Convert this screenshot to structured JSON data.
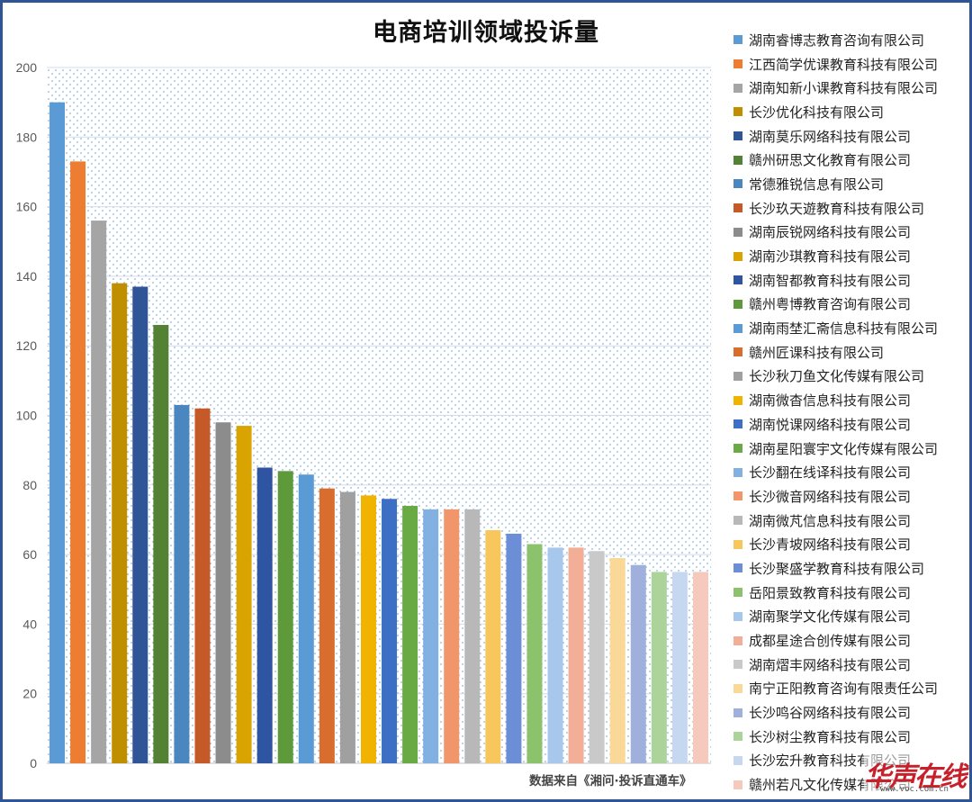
{
  "chart_data": {
    "type": "bar",
    "title": "电商培训领域投诉量",
    "ylim": [
      0,
      200
    ],
    "yticks": [
      0,
      20,
      40,
      60,
      80,
      100,
      120,
      140,
      160,
      180,
      200
    ],
    "grid": true,
    "legend_position": "right",
    "source_note": "数据来自《湘问·投诉直通车》",
    "series": [
      {
        "name": "湖南睿博志教育咨询有限公司",
        "value": 190,
        "color": "#5b9bd5"
      },
      {
        "name": "江西简学优课教育科技有限公司",
        "value": 173,
        "color": "#ed7d31"
      },
      {
        "name": "湖南知新小课教育科技有限公司",
        "value": 156,
        "color": "#a5a5a5"
      },
      {
        "name": "长沙优化科技有限公司",
        "value": 138,
        "color": "#bf8f00"
      },
      {
        "name": "湖南莫乐网络科技有限公司",
        "value": 137,
        "color": "#2f5597"
      },
      {
        "name": "赣州研思文化教育有限公司",
        "value": 126,
        "color": "#548235"
      },
      {
        "name": "常德雅锐信息有限公司",
        "value": 103,
        "color": "#4a86c0"
      },
      {
        "name": "长沙玖天遊教育科技有限公司",
        "value": 102,
        "color": "#c55a28"
      },
      {
        "name": "湖南辰锐网络科技有限公司",
        "value": 98,
        "color": "#8c8c8c"
      },
      {
        "name": "湖南沙琪教育科技有限公司",
        "value": 97,
        "color": "#d9a400"
      },
      {
        "name": "湖南智都教育科技有限公司",
        "value": 85,
        "color": "#2e54a2"
      },
      {
        "name": "赣州粤博教育咨询有限公司",
        "value": 84,
        "color": "#5e9a3a"
      },
      {
        "name": "湖南雨埜汇斋信息科技有限公司",
        "value": 83,
        "color": "#5b9bd5"
      },
      {
        "name": "赣州匠课科技有限公司",
        "value": 79,
        "color": "#d96d2d"
      },
      {
        "name": "长沙秋刀鱼文化传媒有限公司",
        "value": 78,
        "color": "#a0a0a0"
      },
      {
        "name": "湖南微杳信息科技有限公司",
        "value": 77,
        "color": "#f0b400"
      },
      {
        "name": "湖南悦课网络科技有限公司",
        "value": 76,
        "color": "#3d6fc4"
      },
      {
        "name": "湖南星阳寰宇文化传媒有限公司",
        "value": 74,
        "color": "#6aaa45"
      },
      {
        "name": "长沙翻在线译科技有限公司",
        "value": 73,
        "color": "#82b0e0"
      },
      {
        "name": "长沙微音网络科技有限公司",
        "value": 73,
        "color": "#f0966a"
      },
      {
        "name": "湖南微芃信息科技有限公司",
        "value": 73,
        "color": "#b8b8b8"
      },
      {
        "name": "长沙青坡网络科技有限公司",
        "value": 67,
        "color": "#f7c65c"
      },
      {
        "name": "长沙聚盛学教育科技有限公司",
        "value": 66,
        "color": "#6b8ed6"
      },
      {
        "name": "岳阳景致教育科技有限公司",
        "value": 63,
        "color": "#8dc26d"
      },
      {
        "name": "湖南聚学文化传媒有限公司",
        "value": 62,
        "color": "#a7c7ec"
      },
      {
        "name": "成都星途合创传媒有限公司",
        "value": 62,
        "color": "#f2ae96"
      },
      {
        "name": "湖南熠丰网络科技有限公司",
        "value": 61,
        "color": "#c9c9c9"
      },
      {
        "name": "南宁正阳教育咨询有限责任公司",
        "value": 59,
        "color": "#fad898"
      },
      {
        "name": "长沙鸣谷网络科技有限公司",
        "value": 57,
        "color": "#9fb0dc"
      },
      {
        "name": "长沙树尘教育科技有限公司",
        "value": 55,
        "color": "#abd39a"
      },
      {
        "name": "长沙宏升教育科技有限公司",
        "value": 55,
        "color": "#c6d8f0"
      },
      {
        "name": "赣州若凡文化传媒有限公司",
        "value": 55,
        "color": "#f6c9bd"
      }
    ]
  },
  "watermark": {
    "text": "华声在线",
    "url": "www.voc.com.cn"
  }
}
